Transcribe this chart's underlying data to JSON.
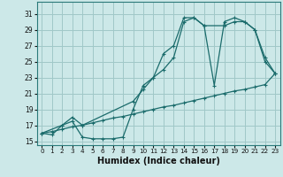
{
  "xlabel": "Humidex (Indice chaleur)",
  "bg_color": "#cce8e8",
  "grid_color": "#a0c8c8",
  "line_color": "#1a6b6b",
  "xlim": [
    -0.5,
    23.5
  ],
  "ylim": [
    14.5,
    32.5
  ],
  "xticks": [
    0,
    1,
    2,
    3,
    4,
    5,
    6,
    7,
    8,
    9,
    10,
    11,
    12,
    13,
    14,
    15,
    16,
    17,
    18,
    19,
    20,
    21,
    22,
    23
  ],
  "yticks": [
    15,
    17,
    19,
    21,
    23,
    25,
    27,
    29,
    31
  ],
  "curve1_x": [
    0,
    1,
    2,
    3,
    4,
    5,
    6,
    7,
    8,
    9,
    10,
    11,
    12,
    13,
    14,
    15,
    16,
    17,
    18,
    19,
    20,
    21,
    22,
    23
  ],
  "curve1_y": [
    16.0,
    15.8,
    17.0,
    17.5,
    15.5,
    15.3,
    15.3,
    15.3,
    15.5,
    19.0,
    22.0,
    23.0,
    26.0,
    27.0,
    30.5,
    30.5,
    29.5,
    22.0,
    30.0,
    30.5,
    30.0,
    29.0,
    25.5,
    23.5
  ],
  "curve2_x": [
    0,
    2,
    3,
    4,
    9,
    10,
    11,
    12,
    13,
    14,
    15,
    16,
    18,
    19,
    20,
    21,
    22,
    23
  ],
  "curve2_y": [
    16.0,
    17.0,
    18.0,
    17.0,
    20.0,
    21.5,
    23.0,
    24.0,
    25.5,
    30.0,
    30.5,
    29.5,
    29.5,
    30.0,
    30.0,
    29.0,
    25.0,
    23.5
  ],
  "curve3_x": [
    0,
    1,
    2,
    3,
    4,
    5,
    6,
    7,
    8,
    9,
    10,
    11,
    12,
    13,
    14,
    15,
    16,
    17,
    18,
    19,
    20,
    21,
    22,
    23
  ],
  "curve3_y": [
    16.0,
    16.2,
    16.5,
    16.8,
    17.0,
    17.3,
    17.6,
    17.9,
    18.1,
    18.4,
    18.7,
    19.0,
    19.3,
    19.5,
    19.8,
    20.1,
    20.4,
    20.7,
    21.0,
    21.3,
    21.5,
    21.8,
    22.1,
    23.5
  ]
}
